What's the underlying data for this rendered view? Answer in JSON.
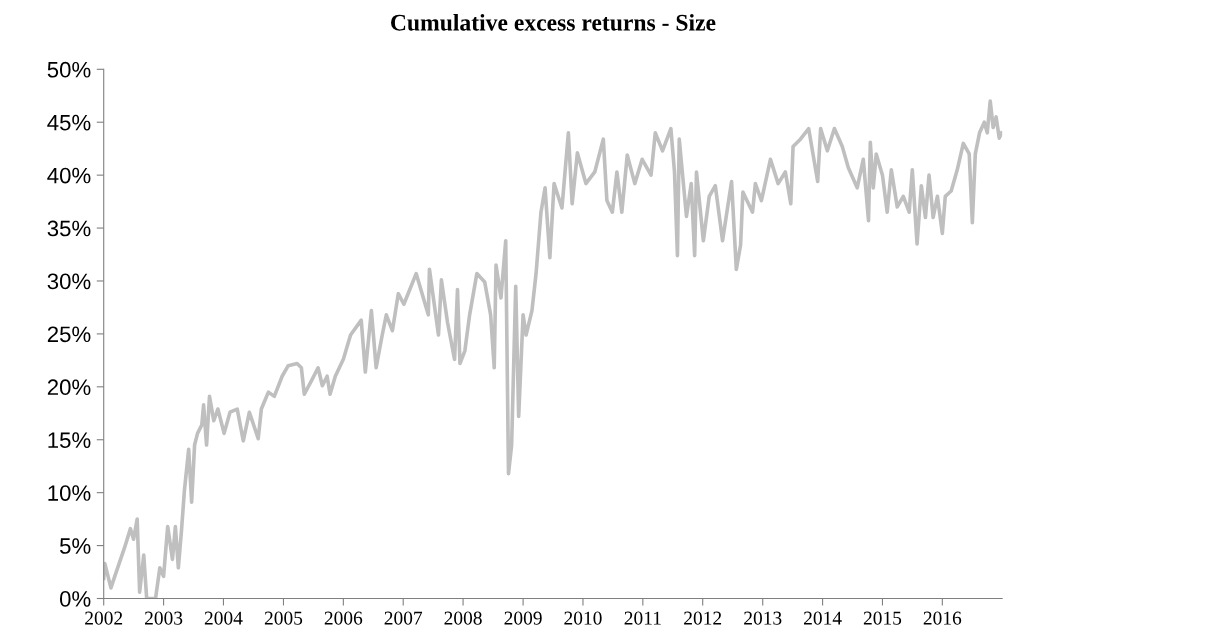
{
  "chart_data": {
    "type": "line",
    "title": "Cumulative excess returns - Size",
    "x": [
      "2002-01-01",
      "2002-01-08",
      "2002-02-14",
      "2002-03-14",
      "2002-05-08",
      "2002-06-13",
      "2002-07-02",
      "2002-07-24",
      "2002-08-08",
      "2002-09-02",
      "2002-09-20",
      "2002-10-19",
      "2002-11-13",
      "2002-12-09",
      "2003-01-01",
      "2003-01-26",
      "2003-02-24",
      "2003-03-14",
      "2003-04-01",
      "2003-04-20",
      "2003-05-08",
      "2003-06-03",
      "2003-06-21",
      "2003-07-09",
      "2003-07-27",
      "2003-08-22",
      "2003-09-02",
      "2003-09-20",
      "2003-10-08",
      "2003-11-03",
      "2003-11-28",
      "2004-01-05",
      "2004-02-10",
      "2004-03-25",
      "2004-05-01",
      "2004-06-07",
      "2004-07-31",
      "2004-08-19",
      "2004-10-01",
      "2004-11-06",
      "2004-12-24",
      "2005-01-30",
      "2005-03-25",
      "2005-04-20",
      "2005-05-08",
      "2005-06-25",
      "2005-07-31",
      "2005-08-26",
      "2005-09-24",
      "2005-10-12",
      "2005-11-13",
      "2006-01-01",
      "2006-02-14",
      "2006-04-20",
      "2006-05-15",
      "2006-06-21",
      "2006-07-20",
      "2006-08-26",
      "2006-09-20",
      "2006-10-27",
      "2006-12-02",
      "2007-01-05",
      "2007-03-21",
      "2007-06-03",
      "2007-06-10",
      "2007-08-04",
      "2007-08-22",
      "2007-09-28",
      "2007-11-10",
      "2007-11-28",
      "2007-12-13",
      "2008-01-12",
      "2008-02-10",
      "2008-03-25",
      "2008-05-12",
      "2008-06-17",
      "2008-07-09",
      "2008-07-20",
      "2008-08-19",
      "2008-09-17",
      "2008-10-04",
      "2008-10-23",
      "2008-11-17",
      "2008-12-05",
      "2009-01-01",
      "2009-01-19",
      "2009-02-24",
      "2009-03-21",
      "2009-04-20",
      "2009-05-15",
      "2009-06-13",
      "2009-07-09",
      "2009-08-26",
      "2009-10-04",
      "2009-10-27",
      "2009-11-28",
      "2010-01-19",
      "2010-03-14",
      "2010-05-05",
      "2010-05-27",
      "2010-06-29",
      "2010-07-27",
      "2010-08-26",
      "2010-09-28",
      "2010-11-13",
      "2010-12-28",
      "2011-02-20",
      "2011-03-18",
      "2011-05-01",
      "2011-06-21",
      "2011-07-13",
      "2011-07-31",
      "2011-08-11",
      "2011-09-24",
      "2011-10-23",
      "2011-11-13",
      "2011-11-24",
      "2012-01-05",
      "2012-02-10",
      "2012-03-18",
      "2012-05-01",
      "2012-06-25",
      "2012-07-24",
      "2012-08-19",
      "2012-09-02",
      "2012-10-31",
      "2012-11-17",
      "2012-12-24",
      "2013-02-17",
      "2013-04-05",
      "2013-05-19",
      "2013-06-21",
      "2013-07-05",
      "2013-08-19",
      "2013-10-08",
      "2013-12-02",
      "2013-12-20",
      "2014-01-30",
      "2014-03-14",
      "2014-05-01",
      "2014-06-07",
      "2014-07-31",
      "2014-09-06",
      "2014-10-08",
      "2014-10-19",
      "2014-11-06",
      "2014-11-24",
      "2015-01-01",
      "2015-01-30",
      "2015-02-24",
      "2015-04-01",
      "2015-05-08",
      "2015-06-13",
      "2015-07-02",
      "2015-07-31",
      "2015-08-26",
      "2015-09-20",
      "2015-10-12",
      "2015-11-06",
      "2015-12-02",
      "2016-01-01",
      "2016-01-19",
      "2016-02-24",
      "2016-04-01",
      "2016-05-08",
      "2016-06-13",
      "2016-07-02",
      "2016-07-20",
      "2016-08-15",
      "2016-09-13",
      "2016-10-01",
      "2016-10-19",
      "2016-11-06",
      "2016-11-24",
      "2016-12-13",
      "2016-12-28"
    ],
    "values": [
      1.9,
      3.3,
      1.0,
      2.3,
      4.8,
      6.6,
      5.6,
      7.5,
      0.6,
      4.1,
      0,
      0,
      0,
      2.9,
      2.1,
      6.8,
      3.7,
      6.8,
      2.9,
      6.4,
      10.2,
      14.1,
      9.1,
      14.5,
      15.6,
      16.4,
      18.3,
      14.5,
      19.1,
      16.8,
      17.9,
      15.6,
      17.6,
      17.9,
      14.9,
      17.6,
      15.1,
      17.9,
      19.5,
      19.1,
      21.0,
      22.0,
      22.2,
      21.8,
      19.3,
      20.7,
      21.8,
      20.1,
      21.0,
      19.3,
      21.0,
      22.6,
      24.9,
      26.3,
      21.4,
      27.2,
      21.8,
      24.9,
      26.8,
      25.3,
      28.8,
      27.8,
      30.7,
      26.8,
      31.1,
      24.9,
      30.1,
      26.1,
      22.6,
      29.2,
      22.2,
      23.4,
      26.8,
      30.7,
      29.9,
      26.8,
      21.8,
      31.5,
      28.4,
      33.8,
      11.8,
      14.5,
      29.5,
      17.2,
      26.8,
      24.9,
      27.2,
      30.7,
      36.5,
      38.8,
      32.2,
      39.2,
      36.9,
      44.0,
      37.3,
      42.1,
      39.2,
      40.3,
      43.4,
      37.6,
      36.5,
      40.3,
      36.5,
      41.9,
      39.2,
      41.5,
      40.0,
      44.0,
      42.3,
      44.4,
      40.3,
      32.4,
      43.4,
      36.1,
      39.2,
      32.4,
      40.3,
      33.8,
      38.0,
      39.0,
      33.8,
      39.4,
      31.1,
      33.4,
      38.4,
      36.5,
      39.2,
      37.6,
      41.5,
      39.2,
      40.3,
      37.3,
      42.7,
      43.4,
      44.4,
      39.4,
      44.4,
      42.3,
      44.4,
      42.7,
      40.7,
      38.8,
      41.5,
      35.7,
      43.1,
      38.8,
      42,
      40,
      36.5,
      40.5,
      37,
      38,
      36.5,
      40.5,
      33.5,
      39,
      36,
      40,
      36,
      38,
      34.5,
      38,
      38.5,
      40.5,
      43,
      42,
      35.5,
      42,
      44,
      45,
      44,
      47,
      44.5,
      45.5,
      43.5,
      44
    ],
    "color": "#bfbfbf",
    "xlim": [
      "2002-01-01",
      "2016-12-31"
    ],
    "xticks": [
      {
        "value": "2002-01-01",
        "label": "2002"
      },
      {
        "value": "2003-01-01",
        "label": "2003"
      },
      {
        "value": "2004-01-01",
        "label": "2004"
      },
      {
        "value": "2005-01-01",
        "label": "2005"
      },
      {
        "value": "2006-01-01",
        "label": "2006"
      },
      {
        "value": "2007-01-01",
        "label": "2007"
      },
      {
        "value": "2008-01-01",
        "label": "2008"
      },
      {
        "value": "2009-01-01",
        "label": "2009"
      },
      {
        "value": "2010-01-01",
        "label": "2010"
      },
      {
        "value": "2011-01-01",
        "label": "2011"
      },
      {
        "value": "2012-01-01",
        "label": "2012"
      },
      {
        "value": "2013-01-01",
        "label": "2013"
      },
      {
        "value": "2014-01-01",
        "label": "2014"
      },
      {
        "value": "2015-01-01",
        "label": "2015"
      },
      {
        "value": "2016-01-01",
        "label": "2016"
      }
    ],
    "ylim": [
      0,
      50
    ],
    "yticks": [
      {
        "value": 0,
        "label": "0%"
      },
      {
        "value": 5,
        "label": "5%"
      },
      {
        "value": 10,
        "label": "10%"
      },
      {
        "value": 15,
        "label": "15%"
      },
      {
        "value": 20,
        "label": "20%"
      },
      {
        "value": 25,
        "label": "25%"
      },
      {
        "value": 30,
        "label": "30%"
      },
      {
        "value": 35,
        "label": "35%"
      },
      {
        "value": 40,
        "label": "40%"
      },
      {
        "value": 45,
        "label": "45%"
      },
      {
        "value": 50,
        "label": "50%"
      }
    ],
    "grid": false,
    "legend": false,
    "marker": "none",
    "line_style": "solid"
  }
}
